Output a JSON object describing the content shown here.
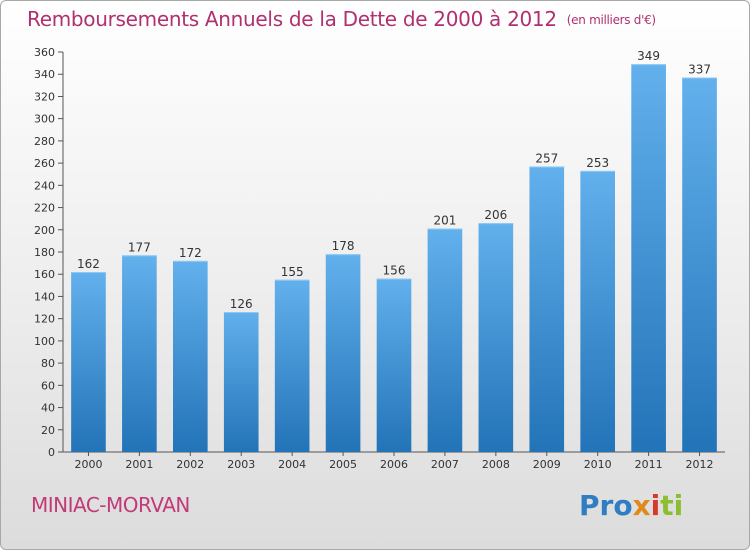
{
  "title": "Remboursements Annuels de la Dette de 2000 à 2012",
  "unit_note": "(en milliers d'€)",
  "commune": "MINIAC-MORVAN",
  "logo": {
    "p1": "Pro",
    "p2": "x",
    "p3": "i",
    "p4": "ti"
  },
  "colors": {
    "bar_top": "#62b0ec",
    "bar_bottom": "#2373b8",
    "title": "#b03070",
    "axis": "#555555"
  },
  "chart_data": {
    "type": "bar",
    "categories": [
      "2000",
      "2001",
      "2002",
      "2003",
      "2004",
      "2005",
      "2006",
      "2007",
      "2008",
      "2009",
      "2010",
      "2011",
      "2012"
    ],
    "values": [
      162,
      177,
      172,
      126,
      155,
      178,
      156,
      201,
      206,
      257,
      253,
      349,
      337
    ],
    "ylim": [
      0,
      360
    ],
    "ytick_step": 20,
    "grid": false
  }
}
